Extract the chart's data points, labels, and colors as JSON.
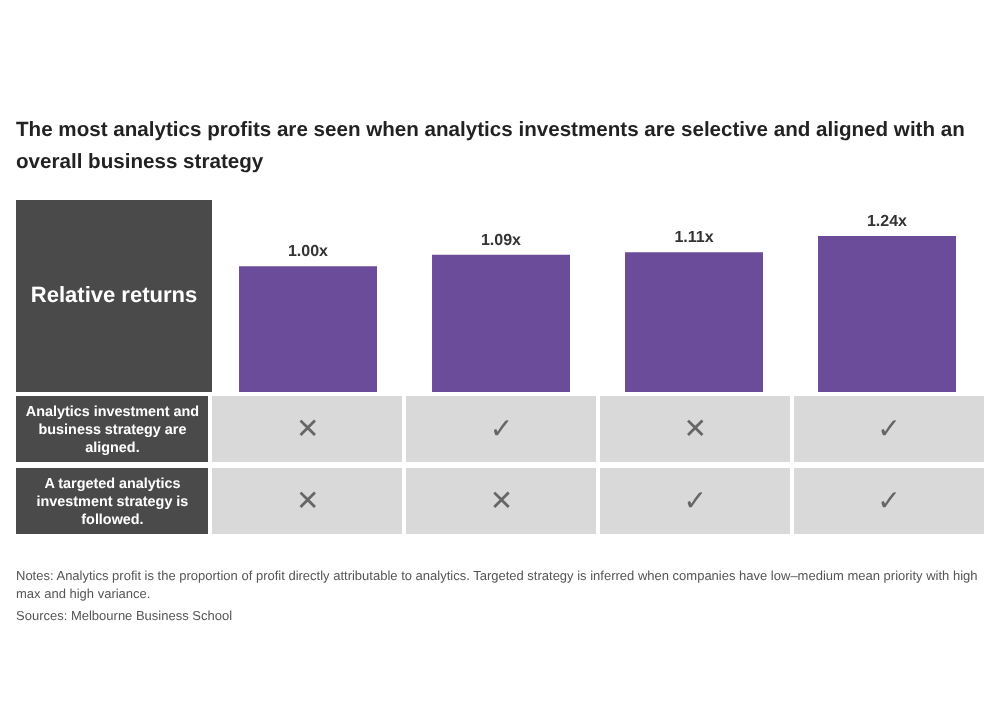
{
  "chart_data": {
    "type": "bar",
    "title": "The most analytics profits are seen when analytics investments are selective and aligned with an overall business strategy",
    "ylabel": "Relative returns",
    "categories": [
      null,
      null,
      null,
      null
    ],
    "values": [
      1.0,
      1.09,
      1.11,
      1.24
    ],
    "value_labels": [
      "1.00x",
      "1.09x",
      "1.11x",
      "1.24x"
    ],
    "color": "#6b4c9a",
    "grid": false,
    "legend": false,
    "annotations": [
      "Analytics investment and business strategy are aligned.",
      "✕",
      "✓",
      "✕",
      "✓",
      "A targeted analytics investment strategy is followed.",
      "✕",
      "✕",
      "✓",
      "✓",
      "Notes: Analytics profit is the proportion of profit directly attributable to analytics. Targeted strategy is inferred when companies have low–medium mean priority with high max and high variance.",
      "Sources: Melbourne Business School"
    ]
  }
}
